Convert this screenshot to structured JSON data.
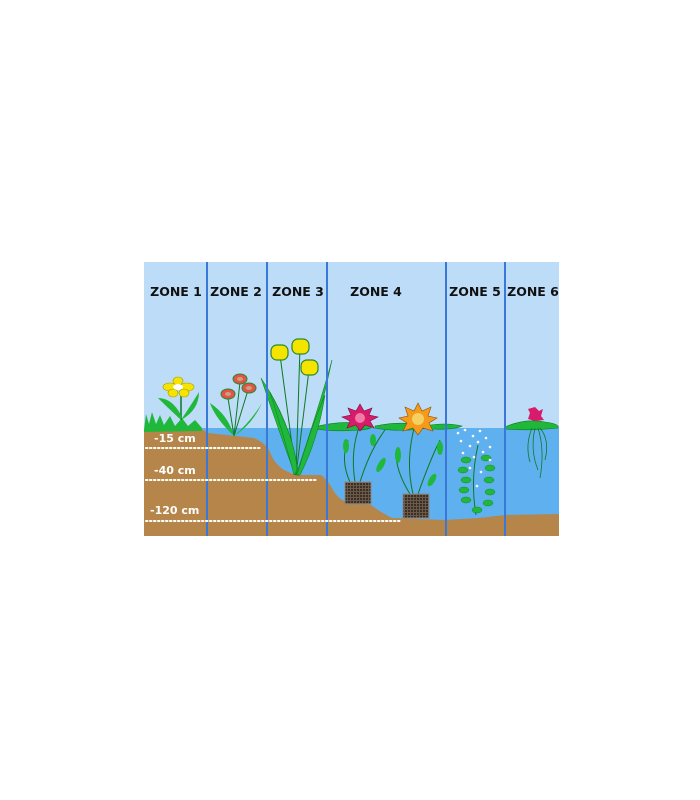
{
  "zones": [
    "ZONE 1",
    "ZONE 2",
    "ZONE 3",
    "ZONE 4",
    "ZONE 5",
    "ZONE 6"
  ],
  "depths": [
    "-15 cm",
    "-40 cm",
    "-120 cm"
  ],
  "colors": {
    "sky": "#bcdcf8",
    "water": "#5fb0ee",
    "soil": "#b5854a",
    "divider": "#3a78d8",
    "plant": "#1fb83a"
  }
}
